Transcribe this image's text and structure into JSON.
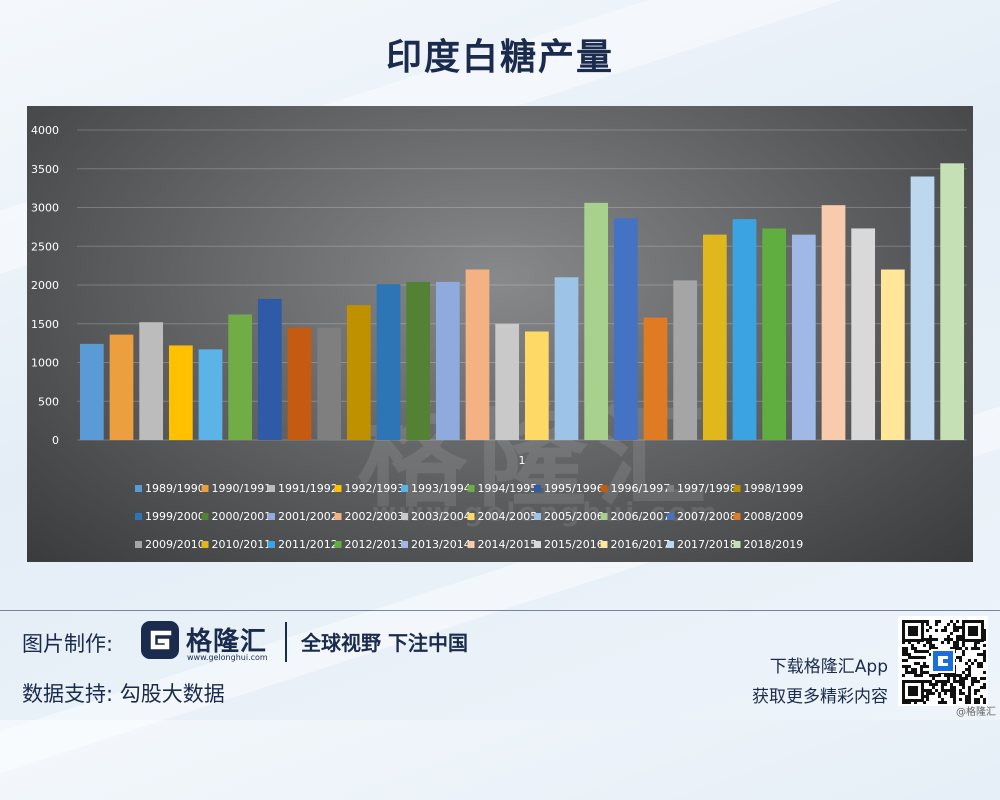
{
  "title": "印度白糖产量",
  "chart_data": {
    "type": "bar",
    "categories": [
      "1"
    ],
    "ylim": [
      0,
      4000
    ],
    "yticks": [
      0,
      500,
      1000,
      1500,
      2000,
      2500,
      3000,
      3500,
      4000
    ],
    "grid": true,
    "legend_position": "bottom",
    "series": [
      {
        "name": "1989/1990",
        "value": 1240,
        "color": "#5b9bd5"
      },
      {
        "name": "1990/1991",
        "value": 1360,
        "color": "#ed9f3f"
      },
      {
        "name": "1991/1992",
        "value": 1520,
        "color": "#bcbcbc"
      },
      {
        "name": "1992/1993",
        "value": 1220,
        "color": "#ffc000"
      },
      {
        "name": "1993/1994",
        "value": 1170,
        "color": "#5bb3e8"
      },
      {
        "name": "1994/1995",
        "value": 1620,
        "color": "#70ad47"
      },
      {
        "name": "1995/1996",
        "value": 1820,
        "color": "#2e5aa8"
      },
      {
        "name": "1996/1997",
        "value": 1450,
        "color": "#c55a11"
      },
      {
        "name": "1997/1998",
        "value": 1450,
        "color": "#7f7f7f"
      },
      {
        "name": "1998/1999",
        "value": 1740,
        "color": "#bf9000"
      },
      {
        "name": "1999/2000",
        "value": 2010,
        "color": "#2e75b6"
      },
      {
        "name": "2000/2001",
        "value": 2040,
        "color": "#548235"
      },
      {
        "name": "2001/2002",
        "value": 2040,
        "color": "#8faadc"
      },
      {
        "name": "2002/2003",
        "value": 2200,
        "color": "#f4b183"
      },
      {
        "name": "2003/2004",
        "value": 1500,
        "color": "#c9c9c9"
      },
      {
        "name": "2004/2005",
        "value": 1400,
        "color": "#ffd966"
      },
      {
        "name": "2005/2006",
        "value": 2100,
        "color": "#9dc3e6"
      },
      {
        "name": "2006/2007",
        "value": 3060,
        "color": "#a9d18e"
      },
      {
        "name": "2007/2008",
        "value": 2860,
        "color": "#4472c4"
      },
      {
        "name": "2008/2009",
        "value": 1580,
        "color": "#e07b24"
      },
      {
        "name": "2009/2010",
        "value": 2060,
        "color": "#a5a5a5"
      },
      {
        "name": "2010/2011",
        "value": 2650,
        "color": "#e1b81c"
      },
      {
        "name": "2011/2012",
        "value": 2850,
        "color": "#3ca3e2"
      },
      {
        "name": "2012/2013",
        "value": 2730,
        "color": "#5fae3f"
      },
      {
        "name": "2013/2014",
        "value": 2650,
        "color": "#9fb8e6"
      },
      {
        "name": "2014/2015",
        "value": 3030,
        "color": "#f8cbad"
      },
      {
        "name": "2015/2016",
        "value": 2730,
        "color": "#d9d9d9"
      },
      {
        "name": "2016/2017",
        "value": 2200,
        "color": "#ffe699"
      },
      {
        "name": "2017/2018",
        "value": 3400,
        "color": "#bdd7ee"
      },
      {
        "name": "2018/2019",
        "value": 3570,
        "color": "#c5e0b4"
      }
    ]
  },
  "watermark": {
    "text": "格隆汇",
    "url": "www.gelonghui.com"
  },
  "footer": {
    "credit_label": "图片制作:",
    "data_label": "数据支持:  勾股大数据",
    "logo_text": "格隆汇",
    "logo_url": "www.gelonghui.com",
    "slogan": "全球视野 下注中国",
    "download_line1": "下载格隆汇App",
    "download_line2": "获取更多精彩内容",
    "corner_mark": "@格隆汇"
  }
}
